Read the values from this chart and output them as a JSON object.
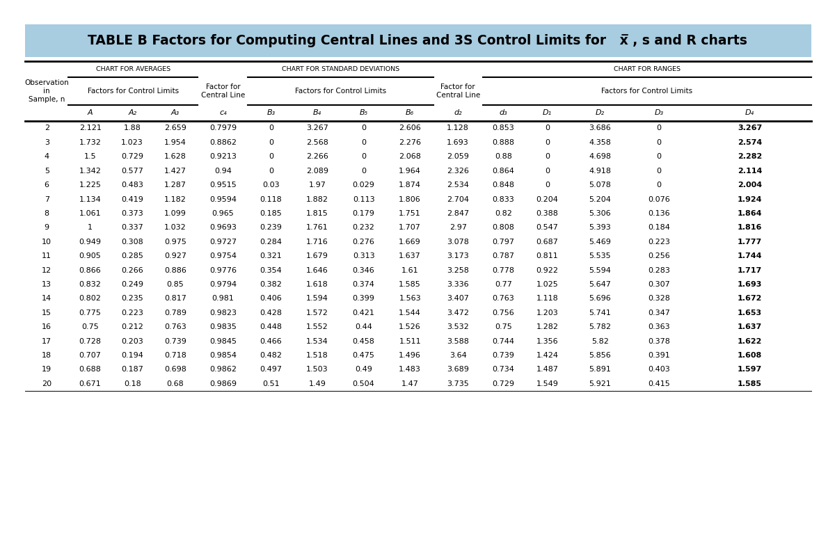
{
  "title_text": "TABLE B Factors for Computing Central Lines and 3S Control Limits for   ",
  "title_xbar": "x̅",
  "title_suffix": " , s and R charts",
  "title_bg": "#a8cce0",
  "col_labels": [
    "A",
    "A₂",
    "A₃",
    "c₄",
    "B₃",
    "B₄",
    "B₅",
    "B₆",
    "d₂",
    "d₃",
    "D₁",
    "D₂",
    "D₃",
    "D₄"
  ],
  "rows": [
    [
      2,
      2.121,
      1.88,
      2.659,
      0.7979,
      0,
      3.267,
      0,
      2.606,
      1.128,
      0.853,
      0,
      3.686,
      0,
      3.267
    ],
    [
      3,
      1.732,
      1.023,
      1.954,
      0.8862,
      0,
      2.568,
      0,
      2.276,
      1.693,
      0.888,
      0,
      4.358,
      0,
      2.574
    ],
    [
      4,
      1.5,
      0.729,
      1.628,
      0.9213,
      0,
      2.266,
      0,
      2.068,
      2.059,
      0.88,
      0,
      4.698,
      0,
      2.282
    ],
    [
      5,
      1.342,
      0.577,
      1.427,
      0.94,
      0,
      2.089,
      0,
      1.964,
      2.326,
      0.864,
      0,
      4.918,
      0,
      2.114
    ],
    [
      6,
      1.225,
      0.483,
      1.287,
      0.9515,
      0.03,
      1.97,
      0.029,
      1.874,
      2.534,
      0.848,
      0,
      5.078,
      0,
      2.004
    ],
    [
      7,
      1.134,
      0.419,
      1.182,
      0.9594,
      0.118,
      1.882,
      0.113,
      1.806,
      2.704,
      0.833,
      0.204,
      5.204,
      0.076,
      1.924
    ],
    [
      8,
      1.061,
      0.373,
      1.099,
      0.965,
      0.185,
      1.815,
      0.179,
      1.751,
      2.847,
      0.82,
      0.388,
      5.306,
      0.136,
      1.864
    ],
    [
      9,
      1.0,
      0.337,
      1.032,
      0.9693,
      0.239,
      1.761,
      0.232,
      1.707,
      2.97,
      0.808,
      0.547,
      5.393,
      0.184,
      1.816
    ],
    [
      10,
      0.949,
      0.308,
      0.975,
      0.9727,
      0.284,
      1.716,
      0.276,
      1.669,
      3.078,
      0.797,
      0.687,
      5.469,
      0.223,
      1.777
    ],
    [
      11,
      0.905,
      0.285,
      0.927,
      0.9754,
      0.321,
      1.679,
      0.313,
      1.637,
      3.173,
      0.787,
      0.811,
      5.535,
      0.256,
      1.744
    ],
    [
      12,
      0.866,
      0.266,
      0.886,
      0.9776,
      0.354,
      1.646,
      0.346,
      1.61,
      3.258,
      0.778,
      0.922,
      5.594,
      0.283,
      1.717
    ],
    [
      13,
      0.832,
      0.249,
      0.85,
      0.9794,
      0.382,
      1.618,
      0.374,
      1.585,
      3.336,
      0.77,
      1.025,
      5.647,
      0.307,
      1.693
    ],
    [
      14,
      0.802,
      0.235,
      0.817,
      0.981,
      0.406,
      1.594,
      0.399,
      1.563,
      3.407,
      0.763,
      1.118,
      5.696,
      0.328,
      1.672
    ],
    [
      15,
      0.775,
      0.223,
      0.789,
      0.9823,
      0.428,
      1.572,
      0.421,
      1.544,
      3.472,
      0.756,
      1.203,
      5.741,
      0.347,
      1.653
    ],
    [
      16,
      0.75,
      0.212,
      0.763,
      0.9835,
      0.448,
      1.552,
      0.44,
      1.526,
      3.532,
      0.75,
      1.282,
      5.782,
      0.363,
      1.637
    ],
    [
      17,
      0.728,
      0.203,
      0.739,
      0.9845,
      0.466,
      1.534,
      0.458,
      1.511,
      3.588,
      0.744,
      1.356,
      5.82,
      0.378,
      1.622
    ],
    [
      18,
      0.707,
      0.194,
      0.718,
      0.9854,
      0.482,
      1.518,
      0.475,
      1.496,
      3.64,
      0.739,
      1.424,
      5.856,
      0.391,
      1.608
    ],
    [
      19,
      0.688,
      0.187,
      0.698,
      0.9862,
      0.497,
      1.503,
      0.49,
      1.483,
      3.689,
      0.734,
      1.487,
      5.891,
      0.403,
      1.597
    ],
    [
      20,
      0.671,
      0.18,
      0.68,
      0.9869,
      0.51,
      1.49,
      0.504,
      1.47,
      3.735,
      0.729,
      1.549,
      5.921,
      0.415,
      1.585
    ]
  ],
  "bold_last_col": true,
  "fig_width": 12.0,
  "fig_height": 7.85,
  "dpi": 100
}
